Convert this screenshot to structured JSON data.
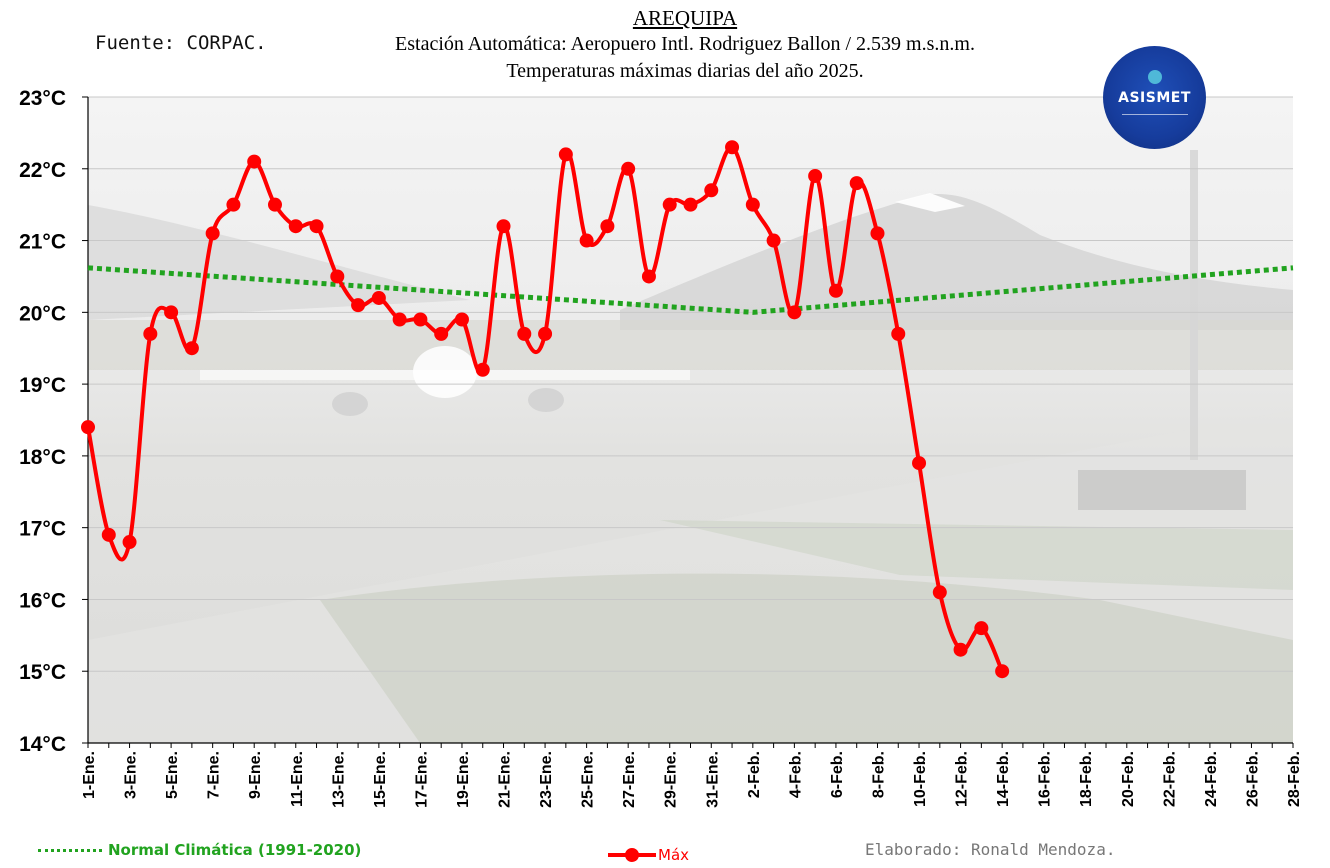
{
  "header": {
    "title": "AREQUIPA",
    "subtitle_1": "Estación Automática: Aeropuero Intl. Rodriguez Ballon / 2.539 m.s.n.m.",
    "subtitle_2": "Temperaturas máximas diarias del año 2025."
  },
  "source": "Fuente: CORPAC.",
  "credit": "Elaborado: Ronald Mendoza.",
  "logo": {
    "text": "ASISMET",
    "background": "#1a44a8"
  },
  "colors": {
    "max": "#ff0000",
    "normal": "#21a31f",
    "grid": "#c8c8c8"
  },
  "chart_data": {
    "type": "line",
    "ylim": [
      14,
      23
    ],
    "y_ticks": [
      "14°C",
      "15°C",
      "16°C",
      "17°C",
      "18°C",
      "19°C",
      "20°C",
      "21°C",
      "22°C",
      "23°C"
    ],
    "x_count": 59,
    "x_tick_labels": [
      "1-Ene.",
      "3-Ene.",
      "5-Ene.",
      "7-Ene.",
      "9-Ene.",
      "11-Ene.",
      "13-Ene.",
      "15-Ene.",
      "17-Ene.",
      "19-Ene.",
      "21-Ene.",
      "23-Ene.",
      "25-Ene.",
      "27-Ene.",
      "29-Ene.",
      "31-Ene.",
      "2-Feb.",
      "4-Feb.",
      "6-Feb.",
      "8-Feb.",
      "10-Feb.",
      "12-Feb.",
      "14-Feb.",
      "16-Feb.",
      "18-Feb.",
      "20-Feb.",
      "22-Feb.",
      "24-Feb.",
      "26-Feb.",
      "28-Feb."
    ],
    "grid": true,
    "legend": "bottom",
    "series": [
      {
        "name": "Máx",
        "style": "solid-markers",
        "values": [
          18.4,
          16.9,
          16.8,
          19.7,
          20.0,
          19.5,
          21.1,
          21.5,
          22.1,
          21.5,
          21.2,
          21.2,
          20.5,
          20.1,
          20.2,
          19.9,
          19.9,
          19.7,
          19.9,
          19.2,
          21.2,
          19.7,
          19.7,
          22.2,
          21.0,
          21.2,
          22.0,
          20.5,
          21.5,
          21.5,
          21.7,
          22.3,
          21.5,
          21.0,
          20.0,
          21.9,
          20.3,
          21.8,
          21.1,
          19.7,
          17.9,
          16.1,
          15.3,
          15.6,
          15.0
        ]
      },
      {
        "name": "Normal Climática (1991-2020)",
        "style": "dotted",
        "points": [
          [
            0,
            20.62
          ],
          [
            32,
            20.0
          ],
          [
            58,
            20.62
          ]
        ]
      }
    ]
  }
}
